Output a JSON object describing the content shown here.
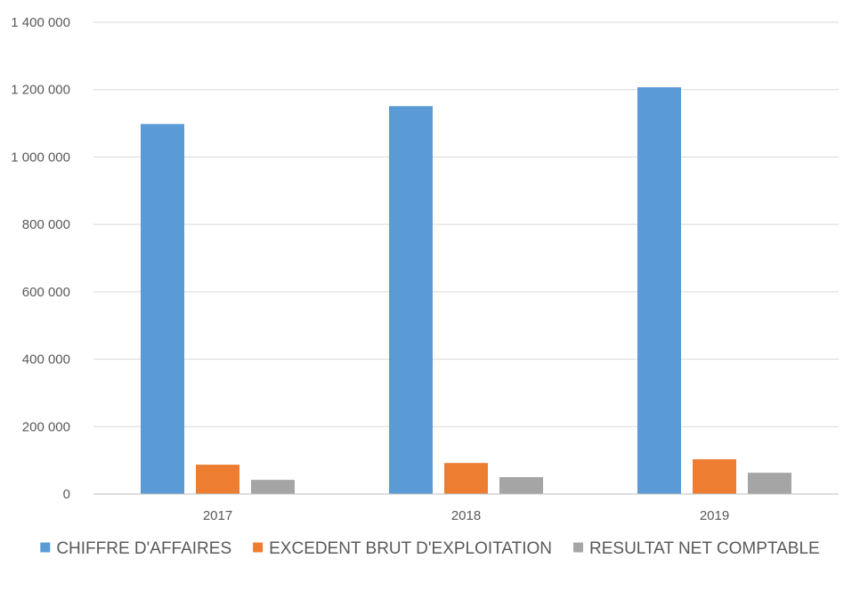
{
  "chart_data": {
    "type": "bar",
    "title": "",
    "xlabel": "",
    "ylabel": "",
    "categories": [
      "2017",
      "2018",
      "2019"
    ],
    "series": [
      {
        "name": "CHIFFRE D'AFFAIRES",
        "color": "#5b9bd5",
        "values": [
          1098000,
          1151000,
          1207000
        ]
      },
      {
        "name": "EXCEDENT BRUT D'EXPLOITATION",
        "color": "#ed7d31",
        "values": [
          87000,
          92000,
          103000
        ]
      },
      {
        "name": "RESULTAT NET COMPTABLE",
        "color": "#a5a5a5",
        "values": [
          42000,
          50000,
          63000
        ]
      }
    ],
    "ylim": [
      0,
      1400000
    ],
    "yticks": [
      0,
      200000,
      400000,
      600000,
      800000,
      1000000,
      1200000,
      1400000
    ],
    "ytick_labels": [
      "0",
      "200 000",
      "400 000",
      "600 000",
      "800 000",
      "1 000 000",
      "1 200 000",
      "1 400 000"
    ],
    "grid": true,
    "legend_position": "bottom"
  }
}
